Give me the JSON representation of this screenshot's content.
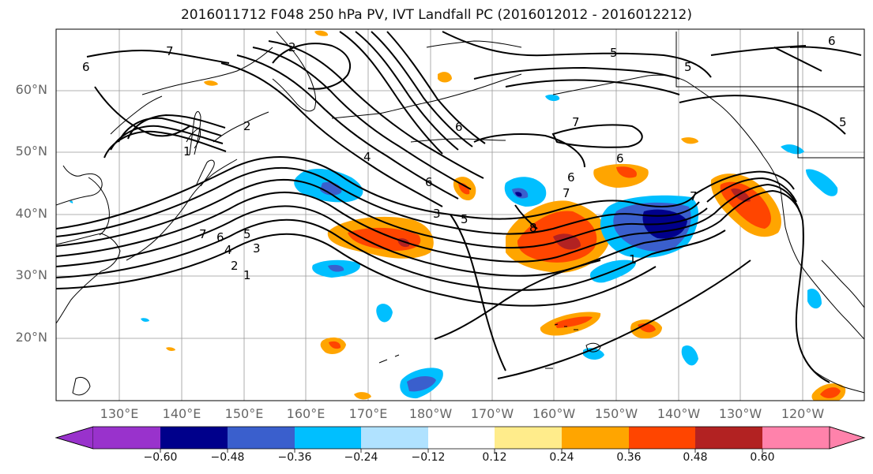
{
  "title": "2016011712 F048 250 hPa PV, IVT Landfall PC (2016012012 - 2016012212)",
  "latitude_labels": [
    "60°N",
    "50°N",
    "40°N",
    "30°N",
    "20°N"
  ],
  "longitude_labels": [
    "130°E",
    "140°E",
    "150°E",
    "160°E",
    "170°E",
    "180°W",
    "170°W",
    "160°W",
    "150°W",
    "140°W",
    "130°W",
    "120°W"
  ],
  "colorbar": {
    "ticks": [
      "−0.60",
      "−0.48",
      "−0.36",
      "−0.24",
      "−0.12",
      "0.12",
      "0.24",
      "0.36",
      "0.48",
      "0.60"
    ],
    "colors": [
      "#9932cc",
      "#00008b",
      "#3a5fcd",
      "#00bfff",
      "#b0e2ff",
      "#ffffff",
      "#ffec8b",
      "#ffa500",
      "#ff4500",
      "#b22222",
      "#ff82ab"
    ]
  },
  "contour_labels": [
    "7",
    "6",
    "2",
    "2",
    "1",
    "7",
    "6",
    "5",
    "4",
    "3",
    "2",
    "1",
    "4",
    "6",
    "3",
    "5",
    "6",
    "7",
    "6",
    "6",
    "7",
    "8",
    "1",
    "7",
    "5",
    "5",
    "6",
    "5"
  ]
}
